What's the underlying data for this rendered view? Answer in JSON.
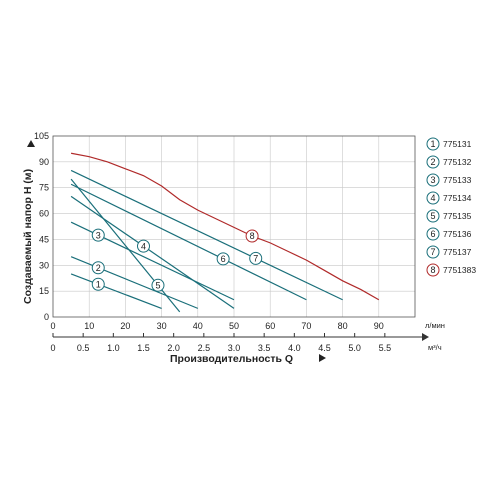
{
  "chart_data": {
    "type": "line",
    "ylabel": "Создаваемый напор H (м)",
    "xlabel": "Производительность Q",
    "x_unit_primary": "л/мин",
    "x_unit_secondary": "м³/ч",
    "xlim": [
      0,
      100
    ],
    "ylim": [
      0,
      105
    ],
    "x_ticks_lmin": [
      "0",
      "10",
      "20",
      "30",
      "40",
      "50",
      "60",
      "70",
      "80",
      "90"
    ],
    "x_ticks_m3h": [
      "0",
      "0.5",
      "1.0",
      "1.5",
      "2.0",
      "2.5",
      "3.0",
      "3.5",
      "4.0",
      "4.5",
      "5.0",
      "5.5"
    ],
    "y_ticks": [
      "0",
      "15",
      "30",
      "45",
      "60",
      "75",
      "90",
      "105"
    ],
    "grid": true,
    "legend_position": "right",
    "series": [
      {
        "name": "775131",
        "num": "1",
        "color": "#1a6f7a",
        "x": [
          5,
          30
        ],
        "y": [
          25,
          5
        ],
        "marker_x": 12.5
      },
      {
        "name": "775132",
        "num": "2",
        "color": "#1a6f7a",
        "x": [
          5,
          40
        ],
        "y": [
          35,
          5
        ],
        "marker_x": 12.5
      },
      {
        "name": "775133",
        "num": "3",
        "color": "#1a6f7a",
        "x": [
          5,
          50
        ],
        "y": [
          55,
          10
        ],
        "marker_x": 12.5
      },
      {
        "name": "775134",
        "num": "4",
        "color": "#1a6f7a",
        "x": [
          5,
          50
        ],
        "y": [
          70,
          5
        ],
        "marker_x": 25
      },
      {
        "name": "775135",
        "num": "5",
        "color": "#1a6f7a",
        "x": [
          5,
          35
        ],
        "y": [
          80,
          3
        ],
        "marker_x": 29
      },
      {
        "name": "775136",
        "num": "6",
        "color": "#1a6f7a",
        "x": [
          5,
          70
        ],
        "y": [
          77,
          10
        ],
        "marker_x": 47
      },
      {
        "name": "775137",
        "num": "7",
        "color": "#1a6f7a",
        "x": [
          5,
          80
        ],
        "y": [
          85,
          10
        ],
        "marker_x": 56
      },
      {
        "name": "7751383",
        "num": "8",
        "color": "#b02a2a",
        "x": [
          5,
          10,
          15,
          20,
          25,
          30,
          35,
          40,
          45,
          50,
          55,
          60,
          65,
          70,
          75,
          80,
          85,
          90
        ],
        "y": [
          95,
          93,
          90,
          86,
          82,
          76,
          68,
          62,
          57,
          52,
          47,
          43,
          38,
          33,
          27,
          21,
          16,
          10
        ],
        "marker_x": 55
      }
    ]
  }
}
